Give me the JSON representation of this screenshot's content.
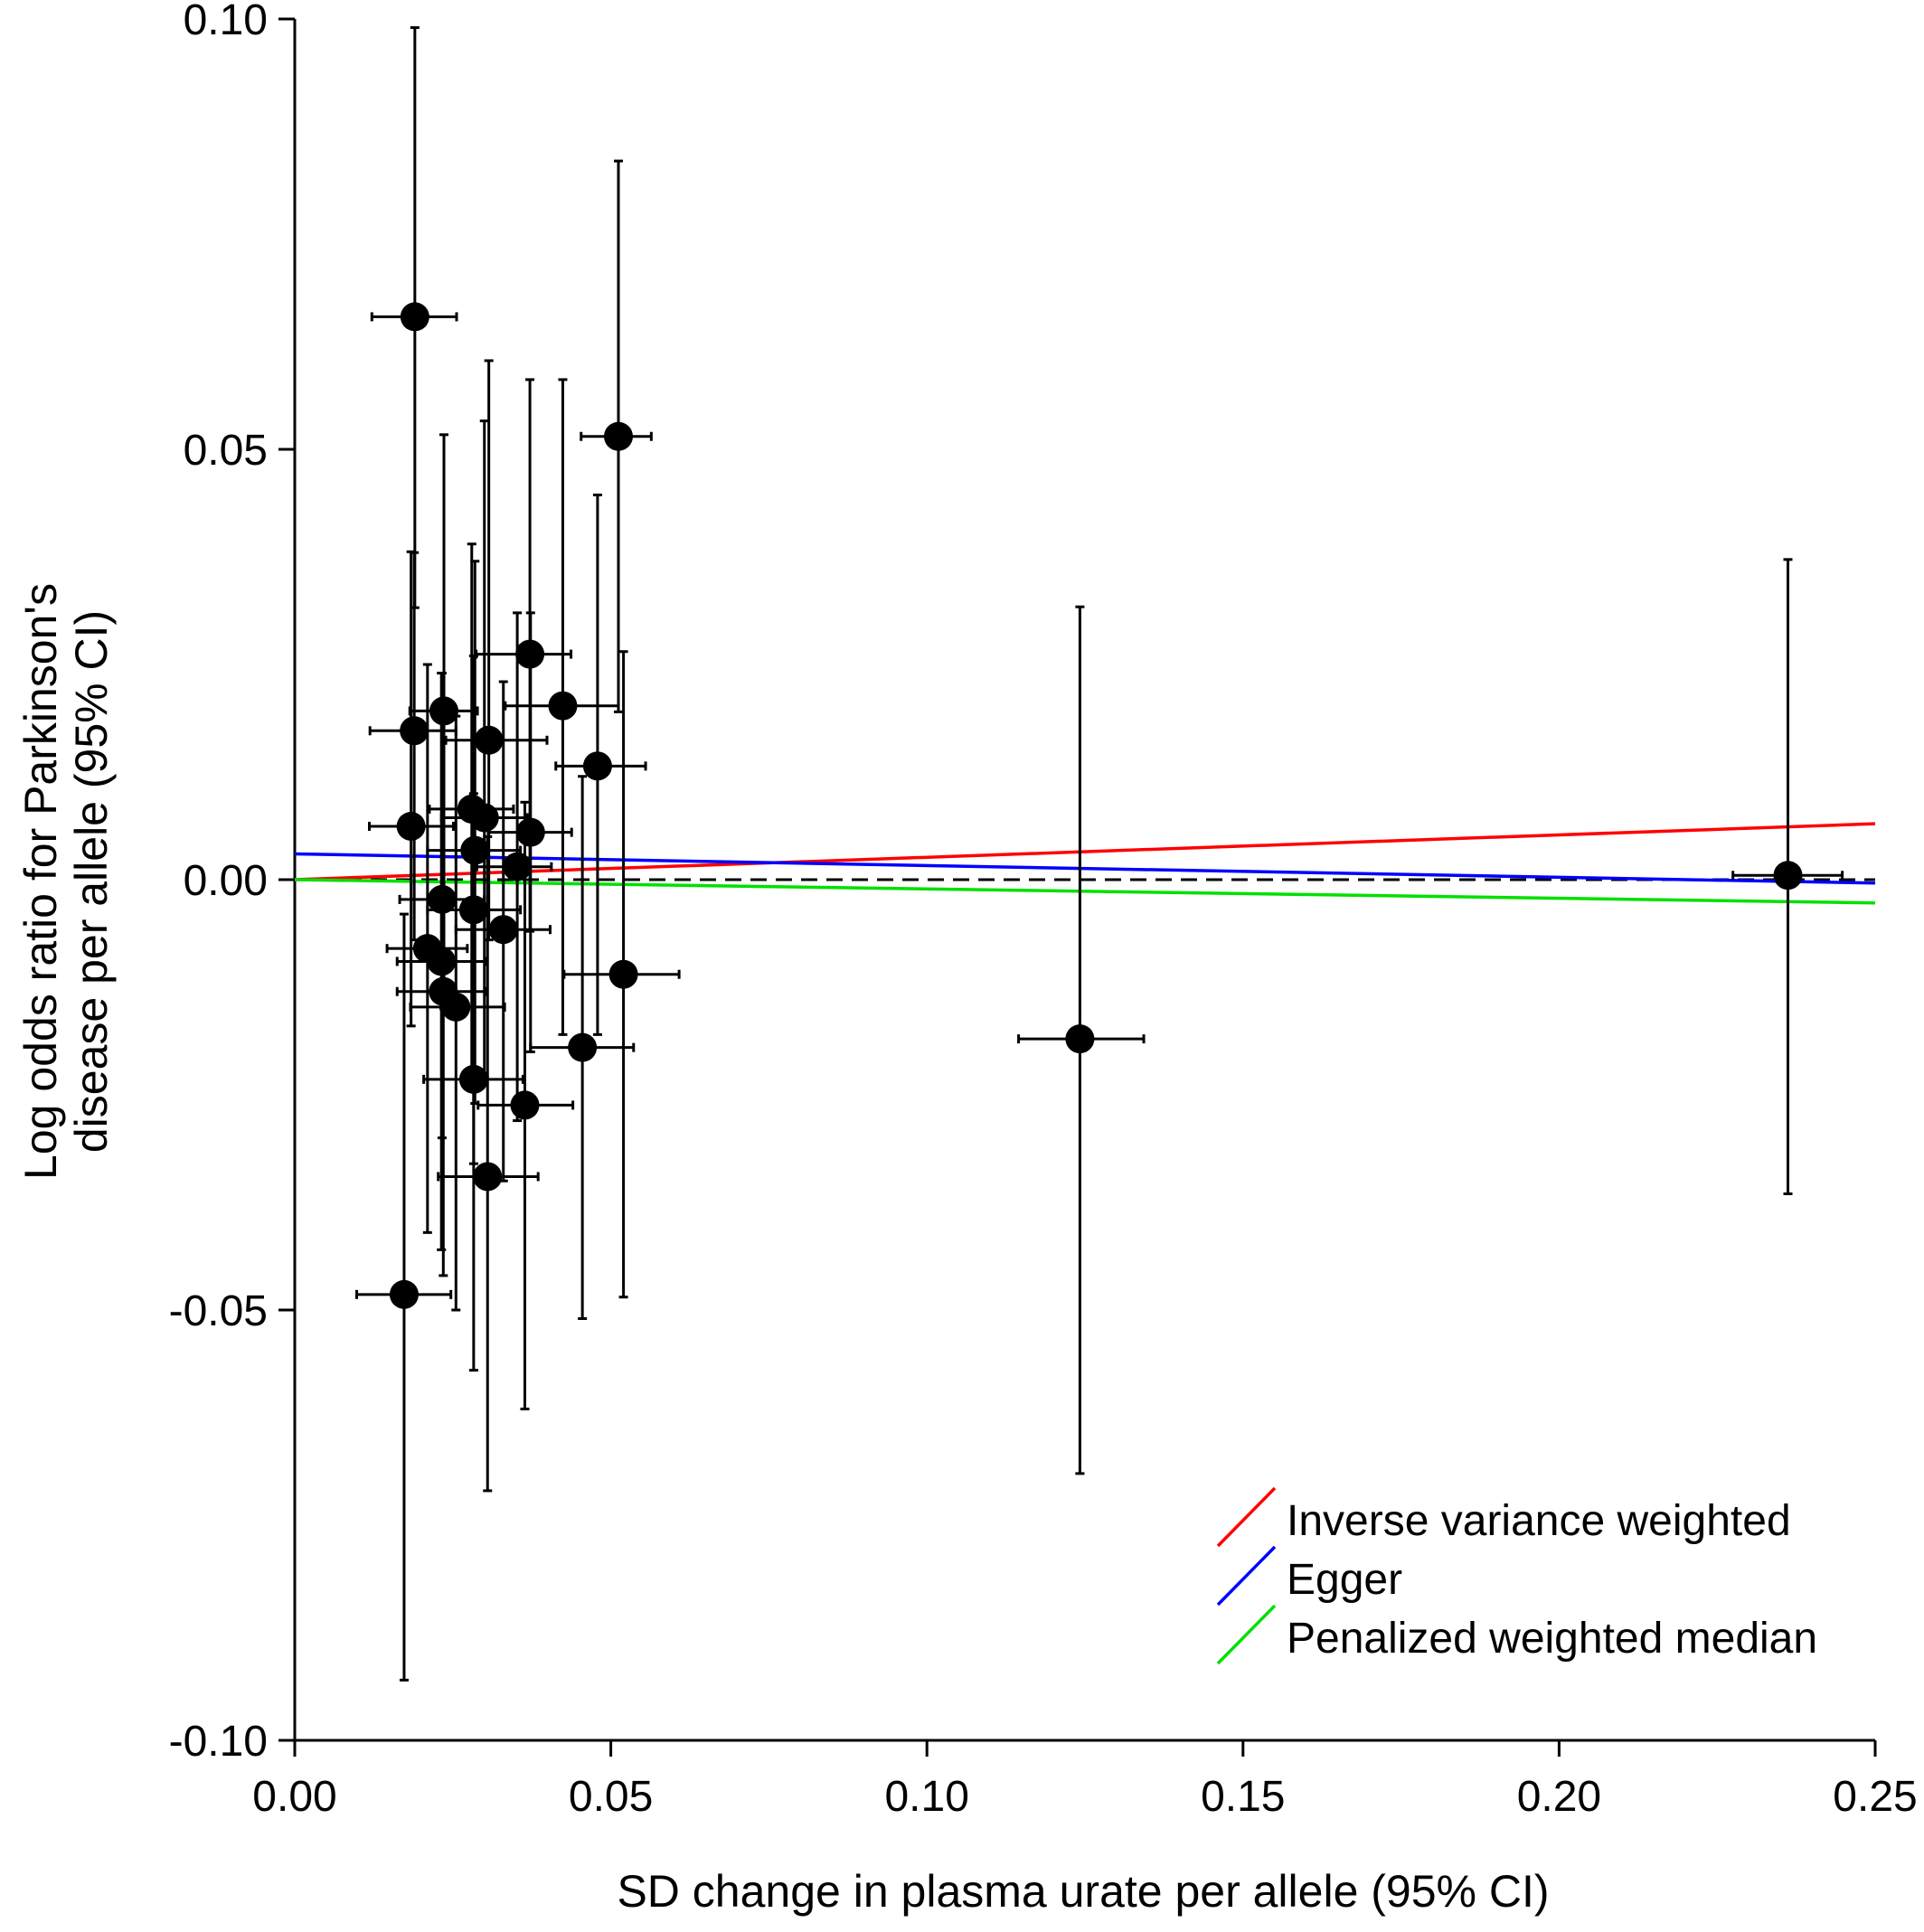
{
  "chart_data": {
    "type": "scatter",
    "title": "",
    "xlabel": "SD change in plasma urate per allele (95% CI)",
    "ylabel_lines": [
      "Log odds ratio for Parkinson's",
      "disease per allele (95% CI)"
    ],
    "xlim": [
      0,
      0.25
    ],
    "ylim": [
      -0.1,
      0.1
    ],
    "x_ticks": [
      0.0,
      0.05,
      0.1,
      0.15,
      0.2,
      0.25
    ],
    "x_tick_labels": [
      "0.00",
      "0.05",
      "0.10",
      "0.15",
      "0.20",
      "0.25"
    ],
    "y_ticks": [
      -0.1,
      -0.05,
      0.0,
      0.05,
      0.1
    ],
    "y_tick_labels": [
      "-0.10",
      "-0.05",
      "0.00",
      "0.05",
      "0.10"
    ],
    "grid": false,
    "legend_position": "bottom-right",
    "reference_line": {
      "y": 0,
      "style": "dashed",
      "color": "#000000"
    },
    "points": [
      {
        "x": 0.019,
        "y": 0.0654,
        "xlo": 0.0122,
        "xhi": 0.0256,
        "ylo": 0.0316,
        "yhi": 0.099
      },
      {
        "x": 0.0512,
        "y": 0.0515,
        "xlo": 0.0453,
        "xhi": 0.0564,
        "ylo": 0.0195,
        "yhi": 0.0835
      },
      {
        "x": 0.0372,
        "y": 0.0262,
        "xlo": 0.0287,
        "xhi": 0.0437,
        "ylo": -0.006,
        "yhi": 0.0581
      },
      {
        "x": 0.0424,
        "y": 0.0202,
        "xlo": 0.0333,
        "xhi": 0.0512,
        "ylo": -0.018,
        "yhi": 0.0581
      },
      {
        "x": 0.0236,
        "y": 0.0196,
        "xlo": 0.0182,
        "xhi": 0.0289,
        "ylo": -0.015,
        "yhi": 0.0517
      },
      {
        "x": 0.0189,
        "y": 0.0173,
        "xlo": 0.0119,
        "xhi": 0.0255,
        "ylo": -0.007,
        "yhi": 0.038
      },
      {
        "x": 0.0307,
        "y": 0.0162,
        "xlo": 0.0239,
        "xhi": 0.0399,
        "ylo": -0.007,
        "yhi": 0.0603
      },
      {
        "x": 0.0479,
        "y": 0.0132,
        "xlo": 0.0413,
        "xhi": 0.0555,
        "ylo": -0.018,
        "yhi": 0.0447
      },
      {
        "x": 0.028,
        "y": 0.0082,
        "xlo": 0.0213,
        "xhi": 0.0346,
        "ylo": -0.022,
        "yhi": 0.039
      },
      {
        "x": 0.03,
        "y": 0.0072,
        "xlo": 0.0232,
        "xhi": 0.0368,
        "ylo": -0.023,
        "yhi": 0.0533
      },
      {
        "x": 0.0184,
        "y": 0.0062,
        "xlo": 0.0118,
        "xhi": 0.0251,
        "ylo": -0.017,
        "yhi": 0.0381
      },
      {
        "x": 0.0373,
        "y": 0.0055,
        "xlo": 0.0306,
        "xhi": 0.0438,
        "ylo": -0.02,
        "yhi": 0.031
      },
      {
        "x": 0.0285,
        "y": 0.0034,
        "xlo": 0.021,
        "xhi": 0.0357,
        "ylo": -0.026,
        "yhi": 0.037
      },
      {
        "x": 0.0352,
        "y": 0.0015,
        "xlo": 0.0288,
        "xhi": 0.0406,
        "ylo": -0.028,
        "yhi": 0.031
      },
      {
        "x": 0.0233,
        "y": -0.0023,
        "xlo": 0.0166,
        "xhi": 0.03,
        "ylo": -0.03,
        "yhi": 0.024
      },
      {
        "x": 0.0283,
        "y": -0.0035,
        "xlo": 0.021,
        "xhi": 0.0357,
        "ylo": -0.033,
        "yhi": 0.026
      },
      {
        "x": 0.033,
        "y": -0.0058,
        "xlo": 0.0255,
        "xhi": 0.0404,
        "ylo": -0.035,
        "yhi": 0.023
      },
      {
        "x": 0.021,
        "y": -0.008,
        "xlo": 0.0146,
        "xhi": 0.0273,
        "ylo": -0.041,
        "yhi": 0.025
      },
      {
        "x": 0.0232,
        "y": -0.0095,
        "xlo": 0.0162,
        "xhi": 0.0303,
        "ylo": -0.043,
        "yhi": 0.024
      },
      {
        "x": 0.0235,
        "y": -0.013,
        "xlo": 0.0162,
        "xhi": 0.0303,
        "ylo": -0.046,
        "yhi": 0.02
      },
      {
        "x": 0.0255,
        "y": -0.0148,
        "xlo": 0.0183,
        "xhi": 0.0332,
        "ylo": -0.05,
        "yhi": 0.019
      },
      {
        "x": 0.052,
        "y": -0.011,
        "xlo": 0.0426,
        "xhi": 0.0608,
        "ylo": -0.0485,
        "yhi": 0.0265
      },
      {
        "x": 0.0455,
        "y": -0.0195,
        "xlo": 0.0373,
        "xhi": 0.0536,
        "ylo": -0.051,
        "yhi": 0.012
      },
      {
        "x": 0.0283,
        "y": -0.0232,
        "xlo": 0.0204,
        "xhi": 0.0361,
        "ylo": -0.057,
        "yhi": 0.01
      },
      {
        "x": 0.0364,
        "y": -0.0262,
        "xlo": 0.029,
        "xhi": 0.044,
        "ylo": -0.0615,
        "yhi": 0.009
      },
      {
        "x": 0.0305,
        "y": -0.0345,
        "xlo": 0.0227,
        "xhi": 0.0385,
        "ylo": -0.071,
        "yhi": 0.005
      },
      {
        "x": 0.0173,
        "y": -0.0482,
        "xlo": 0.0098,
        "xhi": 0.0247,
        "ylo": -0.093,
        "yhi": -0.004
      },
      {
        "x": 0.1242,
        "y": -0.0185,
        "xlo": 0.1145,
        "xhi": 0.1343,
        "ylo": -0.069,
        "yhi": 0.0317
      },
      {
        "x": 0.2362,
        "y": 0.0005,
        "xlo": 0.2275,
        "xhi": 0.2448,
        "ylo": -0.0365,
        "yhi": 0.0372
      }
    ],
    "series": [
      {
        "name": "Inverse variance weighted",
        "color": "#ff0000",
        "x": [
          0,
          0.25
        ],
        "y": [
          0,
          0.0065
        ]
      },
      {
        "name": "Egger",
        "color": "#0000ff",
        "x": [
          0,
          0.25
        ],
        "y": [
          0.003,
          -0.0004
        ]
      },
      {
        "name": "Penalized weighted median",
        "color": "#00e000",
        "x": [
          0,
          0.25
        ],
        "y": [
          0,
          -0.0027
        ]
      }
    ]
  }
}
